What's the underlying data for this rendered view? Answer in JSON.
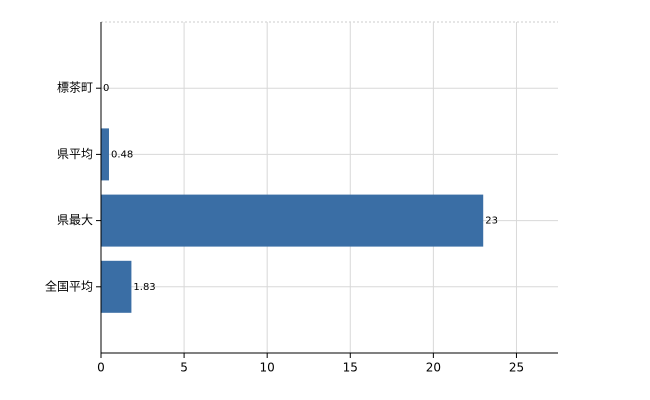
{
  "chart_data": {
    "type": "hbar",
    "categories": [
      "標茶町",
      "県平均",
      "県最大",
      "全国平均"
    ],
    "values": [
      0,
      0.48,
      23,
      1.83
    ],
    "color": "#3a6ea5",
    "xlim": [
      0,
      27.5
    ],
    "xticks": [
      0,
      5,
      10,
      15,
      20,
      25
    ],
    "grid": true
  }
}
